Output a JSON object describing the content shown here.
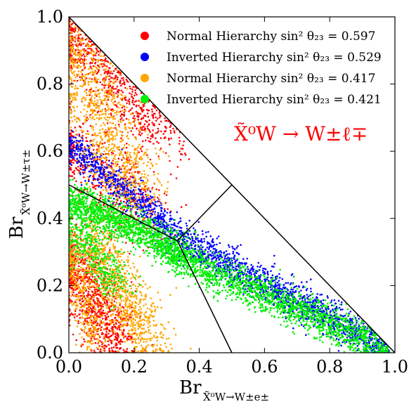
{
  "chart_data": {
    "type": "scatter",
    "xlabel": "Br",
    "xlabel_sub": "X̃⁰W→W±e±",
    "ylabel": "Br",
    "ylabel_sub": "X̃⁰W→W±τ±",
    "xlim": [
      0.0,
      1.0
    ],
    "ylim": [
      0.0,
      1.0
    ],
    "xticks": [
      "0.0",
      "0.2",
      "0.4",
      "0.6",
      "0.8",
      "1.0"
    ],
    "yticks": [
      "0.0",
      "0.2",
      "0.4",
      "0.6",
      "0.8",
      "1.0"
    ],
    "legend_position": "top-right",
    "grid": false,
    "annotation": {
      "text": "X̃⁰W → W±ℓ∓",
      "color": "#ff0000"
    },
    "boundary_lines": [
      {
        "from": [
          0.0,
          1.0
        ],
        "to": [
          1.0,
          0.0
        ]
      },
      {
        "from": [
          0.0,
          0.5
        ],
        "to": [
          0.333,
          0.333
        ]
      },
      {
        "from": [
          0.333,
          0.333
        ],
        "to": [
          0.5,
          0.5
        ]
      },
      {
        "from": [
          0.333,
          0.333
        ],
        "to": [
          0.5,
          0.0
        ]
      }
    ],
    "series": [
      {
        "name": "Normal Hierarchy sin² θ₂₃ = 0.597",
        "color": "#ff0000",
        "regions": [
          {
            "from": [
              0.0,
              0.96
            ],
            "to": [
              0.32,
              0.64
            ],
            "spread": 0.1,
            "count": 900
          },
          {
            "from": [
              0.0,
              0.3
            ],
            "to": [
              0.15,
              0.02
            ],
            "spread": 0.08,
            "count": 900
          },
          {
            "from": [
              0.0,
              0.62
            ],
            "to": [
              0.25,
              0.4
            ],
            "spread": 0.12,
            "count": 500
          }
        ]
      },
      {
        "name": "Inverted Hierarchy sin² θ₂₃ = 0.529",
        "color": "#0000ff",
        "regions": [
          {
            "from": [
              0.0,
              0.62
            ],
            "to": [
              0.3,
              0.38
            ],
            "spread": 0.04,
            "count": 700
          },
          {
            "from": [
              0.3,
              0.36
            ],
            "to": [
              0.98,
              0.01
            ],
            "spread": 0.05,
            "count": 1500
          }
        ]
      },
      {
        "name": "Normal Hierarchy sin² θ₂₃ = 0.417",
        "color": "#ffa500",
        "regions": [
          {
            "from": [
              0.02,
              0.92
            ],
            "to": [
              0.2,
              0.45
            ],
            "spread": 0.1,
            "count": 1000
          },
          {
            "from": [
              0.05,
              0.36
            ],
            "to": [
              0.25,
              0.02
            ],
            "spread": 0.08,
            "count": 1000
          },
          {
            "from": [
              0.0,
              0.3
            ],
            "to": [
              0.08,
              0.02
            ],
            "spread": 0.04,
            "count": 300
          }
        ]
      },
      {
        "name": "Inverted Hierarchy sin² θ₂₃ = 0.421",
        "color": "#00ee00",
        "regions": [
          {
            "from": [
              0.0,
              0.46
            ],
            "to": [
              0.35,
              0.3
            ],
            "spread": 0.05,
            "count": 1200
          },
          {
            "from": [
              0.3,
              0.3
            ],
            "to": [
              0.98,
              0.01
            ],
            "spread": 0.05,
            "count": 1800
          },
          {
            "from": [
              0.0,
              0.4
            ],
            "to": [
              0.15,
              0.2
            ],
            "spread": 0.06,
            "count": 400
          }
        ]
      }
    ]
  }
}
